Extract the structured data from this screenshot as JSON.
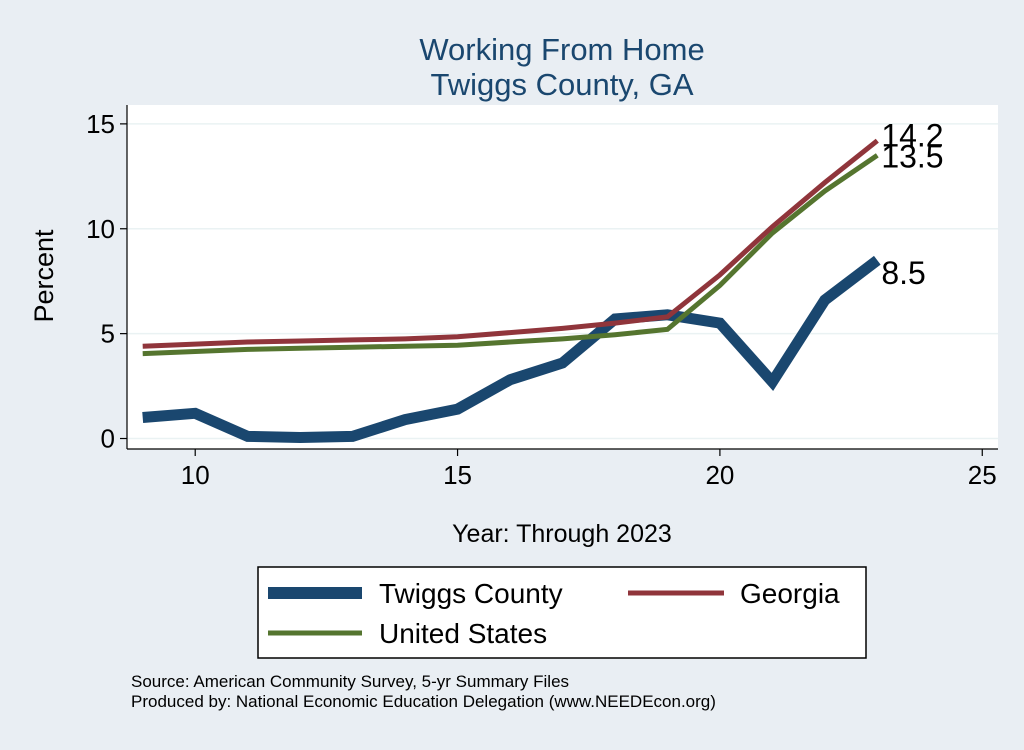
{
  "chart_data": {
    "type": "line",
    "title": "Working From Home",
    "subtitle": "Twiggs County, GA",
    "xlabel": "Year: Through 2023",
    "ylabel": "Percent",
    "xlim": [
      8.7,
      25.3
    ],
    "ylim": [
      -0.5,
      15.9
    ],
    "xticks": [
      10,
      15,
      20,
      25
    ],
    "yticks": [
      0,
      5,
      10,
      15
    ],
    "grid": true,
    "legend_position": "bottom",
    "series": [
      {
        "name": "Twiggs County",
        "color": "#1a476f",
        "x": [
          9,
          10,
          11,
          12,
          13,
          14,
          15,
          16,
          17,
          18,
          19,
          20,
          21,
          22,
          23
        ],
        "y": [
          1.0,
          1.2,
          0.1,
          0.05,
          0.1,
          0.9,
          1.4,
          2.8,
          3.6,
          5.7,
          5.9,
          5.5,
          2.7,
          6.6,
          8.5
        ],
        "end_label": "8.5"
      },
      {
        "name": "Georgia",
        "color": "#90353b",
        "x": [
          9,
          10,
          11,
          12,
          13,
          14,
          15,
          16,
          17,
          18,
          19,
          20,
          21,
          22,
          23
        ],
        "y": [
          4.4,
          4.5,
          4.6,
          4.65,
          4.7,
          4.75,
          4.85,
          5.05,
          5.25,
          5.5,
          5.8,
          7.8,
          10.1,
          12.2,
          14.2
        ],
        "end_label": "14.2"
      },
      {
        "name": "United States",
        "color": "#55752f",
        "x": [
          9,
          10,
          11,
          12,
          13,
          14,
          15,
          16,
          17,
          18,
          19,
          20,
          21,
          22,
          23
        ],
        "y": [
          4.05,
          4.15,
          4.25,
          4.3,
          4.35,
          4.4,
          4.45,
          4.6,
          4.75,
          4.95,
          5.2,
          7.3,
          9.8,
          11.8,
          13.5
        ],
        "end_label": "13.5"
      }
    ]
  },
  "legend": {
    "items": [
      "Twiggs County",
      "Georgia",
      "United States"
    ]
  },
  "source": {
    "line1": "Source: American Community Survey, 5-yr Summary Files",
    "line2": "Produced by: National Economic Education Delegation (www.NEEDEcon.org)"
  }
}
